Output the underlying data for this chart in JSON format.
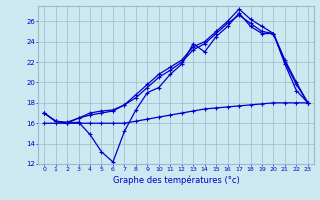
{
  "xlabel": "Graphe des températures (°c)",
  "bg_color": "#cce8f0",
  "grid_color": "#99bbcc",
  "line_color": "#0000cc",
  "xlim": [
    -0.5,
    23.5
  ],
  "ylim": [
    12,
    27.5
  ],
  "yticks": [
    12,
    14,
    16,
    18,
    20,
    22,
    24,
    26
  ],
  "xticks": [
    0,
    1,
    2,
    3,
    4,
    5,
    6,
    7,
    8,
    9,
    10,
    11,
    12,
    13,
    14,
    15,
    16,
    17,
    18,
    19,
    20,
    21,
    22,
    23
  ],
  "line_min": [
    16.0,
    16.0,
    16.0,
    16.0,
    16.0,
    16.0,
    16.0,
    16.0,
    16.2,
    16.4,
    16.6,
    16.8,
    17.0,
    17.2,
    17.4,
    17.5,
    17.6,
    17.7,
    17.8,
    17.9,
    18.0,
    18.0,
    18.0,
    18.0
  ],
  "line_low": [
    17.0,
    16.2,
    16.0,
    16.1,
    14.9,
    13.2,
    12.2,
    15.2,
    17.3,
    19.0,
    19.5,
    20.8,
    21.8,
    23.8,
    23.0,
    24.5,
    25.5,
    26.8,
    25.5,
    24.8,
    24.8,
    21.8,
    19.2,
    18.0
  ],
  "line_mid": [
    17.0,
    16.2,
    16.0,
    16.5,
    16.8,
    17.0,
    17.2,
    17.8,
    18.5,
    19.5,
    20.5,
    21.2,
    22.0,
    23.2,
    23.8,
    24.8,
    25.8,
    26.6,
    25.8,
    25.0,
    24.8,
    22.0,
    19.8,
    18.0
  ],
  "line_high": [
    17.0,
    16.2,
    16.1,
    16.5,
    17.0,
    17.2,
    17.3,
    17.8,
    18.8,
    19.8,
    20.8,
    21.5,
    22.2,
    23.5,
    24.0,
    25.0,
    26.0,
    27.2,
    26.2,
    25.5,
    24.8,
    22.2,
    20.0,
    18.0
  ]
}
